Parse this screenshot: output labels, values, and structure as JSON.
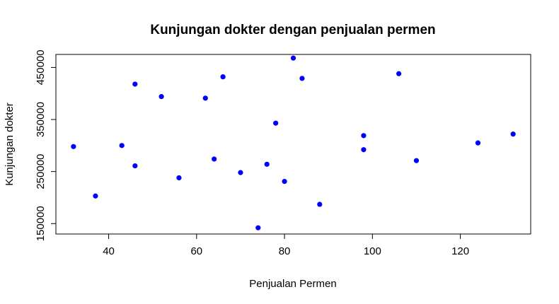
{
  "chart_data": {
    "type": "scatter",
    "title": "Kunjungan dokter dengan penjualan permen",
    "xlabel": "Penjualan Permen",
    "ylabel": "Kunjungan dokter",
    "xlim": [
      28,
      136
    ],
    "ylim": [
      130000,
      475000
    ],
    "x_ticks": [
      40,
      60,
      80,
      100,
      120
    ],
    "y_ticks": [
      150000,
      250000,
      350000,
      450000
    ],
    "grid": false,
    "legend": "none",
    "point_color": "#0000ff",
    "points": [
      {
        "x": 32,
        "y": 298000
      },
      {
        "x": 37,
        "y": 203000
      },
      {
        "x": 43,
        "y": 300000
      },
      {
        "x": 46,
        "y": 418000
      },
      {
        "x": 46,
        "y": 261000
      },
      {
        "x": 52,
        "y": 394000
      },
      {
        "x": 56,
        "y": 238000
      },
      {
        "x": 62,
        "y": 391000
      },
      {
        "x": 64,
        "y": 274000
      },
      {
        "x": 66,
        "y": 432000
      },
      {
        "x": 70,
        "y": 248000
      },
      {
        "x": 74,
        "y": 142000
      },
      {
        "x": 76,
        "y": 264000
      },
      {
        "x": 78,
        "y": 343000
      },
      {
        "x": 80,
        "y": 231000
      },
      {
        "x": 82,
        "y": 468000
      },
      {
        "x": 84,
        "y": 429000
      },
      {
        "x": 88,
        "y": 187000
      },
      {
        "x": 98,
        "y": 319000
      },
      {
        "x": 98,
        "y": 292000
      },
      {
        "x": 106,
        "y": 438000
      },
      {
        "x": 110,
        "y": 271000
      },
      {
        "x": 124,
        "y": 305000
      },
      {
        "x": 132,
        "y": 322000
      }
    ]
  }
}
